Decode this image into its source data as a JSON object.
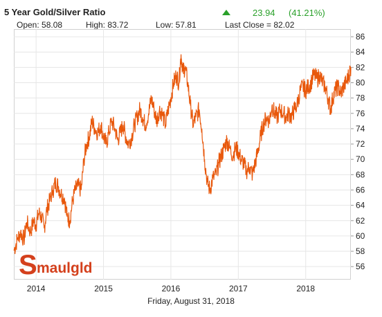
{
  "header": {
    "title": "5 Year Gold/Silver Ratio",
    "change_value": "23.94",
    "change_pct": "(41.21%)",
    "open_label": "Open: 58.08",
    "high_label": "High: 83.72",
    "low_label": "Low: 57.81",
    "last_close_label": "Last Close = 82.02"
  },
  "footer": {
    "date": "Friday, August 31, 2018"
  },
  "logo": {
    "text": "maulgld",
    "initial": "S"
  },
  "colors": {
    "line": "#e8580c",
    "positive": "#2aa02a",
    "grid": "#e6e6e6",
    "logo": "#d4401c"
  },
  "chart_data": {
    "type": "line",
    "title": "5 Year Gold/Silver Ratio",
    "xlabel": "",
    "ylabel": "",
    "x_ticks": [
      "2014",
      "2015",
      "2016",
      "2017",
      "2018"
    ],
    "y_ticks": [
      56,
      58,
      60,
      62,
      64,
      66,
      68,
      70,
      72,
      74,
      76,
      78,
      80,
      82,
      84,
      86
    ],
    "xlim": [
      2013.67,
      2018.67
    ],
    "ylim": [
      54.3,
      87
    ],
    "grid": true,
    "legend": "none",
    "series": [
      {
        "name": "",
        "points": [
          [
            2013.67,
            58.1
          ],
          [
            2013.72,
            59.5
          ],
          [
            2013.77,
            60.5
          ],
          [
            2013.82,
            59.5
          ],
          [
            2013.86,
            61.8
          ],
          [
            2013.92,
            60.5
          ],
          [
            2013.96,
            62.0
          ],
          [
            2014.0,
            61.5
          ],
          [
            2014.04,
            63.0
          ],
          [
            2014.08,
            62.5
          ],
          [
            2014.12,
            61.0
          ],
          [
            2014.16,
            63.5
          ],
          [
            2014.2,
            64.5
          ],
          [
            2014.25,
            66.0
          ],
          [
            2014.29,
            67.0
          ],
          [
            2014.33,
            66.5
          ],
          [
            2014.37,
            65.5
          ],
          [
            2014.42,
            65.0
          ],
          [
            2014.46,
            62.5
          ],
          [
            2014.5,
            62.0
          ],
          [
            2014.54,
            64.5
          ],
          [
            2014.58,
            66.0
          ],
          [
            2014.62,
            66.5
          ],
          [
            2014.67,
            66.0
          ],
          [
            2014.71,
            70.0
          ],
          [
            2014.75,
            72.0
          ],
          [
            2014.79,
            73.0
          ],
          [
            2014.83,
            75.0
          ],
          [
            2014.87,
            74.0
          ],
          [
            2014.92,
            73.5
          ],
          [
            2014.96,
            74.5
          ],
          [
            2015.0,
            73.0
          ],
          [
            2015.04,
            72.0
          ],
          [
            2015.08,
            73.5
          ],
          [
            2015.12,
            75.0
          ],
          [
            2015.17,
            74.0
          ],
          [
            2015.21,
            72.5
          ],
          [
            2015.25,
            73.5
          ],
          [
            2015.29,
            74.5
          ],
          [
            2015.33,
            73.0
          ],
          [
            2015.37,
            72.0
          ],
          [
            2015.42,
            73.0
          ],
          [
            2015.46,
            74.5
          ],
          [
            2015.5,
            75.5
          ],
          [
            2015.54,
            76.5
          ],
          [
            2015.58,
            75.5
          ],
          [
            2015.62,
            74.5
          ],
          [
            2015.67,
            76.0
          ],
          [
            2015.71,
            78.0
          ],
          [
            2015.75,
            76.5
          ],
          [
            2015.79,
            75.0
          ],
          [
            2015.83,
            76.5
          ],
          [
            2015.87,
            76.0
          ],
          [
            2015.92,
            74.5
          ],
          [
            2015.96,
            76.5
          ],
          [
            2016.0,
            78.0
          ],
          [
            2016.04,
            80.0
          ],
          [
            2016.08,
            81.0
          ],
          [
            2016.12,
            80.0
          ],
          [
            2016.15,
            83.7
          ],
          [
            2016.18,
            81.5
          ],
          [
            2016.21,
            82.0
          ],
          [
            2016.25,
            80.0
          ],
          [
            2016.29,
            77.0
          ],
          [
            2016.33,
            74.5
          ],
          [
            2016.37,
            75.5
          ],
          [
            2016.42,
            76.5
          ],
          [
            2016.46,
            74.0
          ],
          [
            2016.5,
            70.0
          ],
          [
            2016.54,
            67.0
          ],
          [
            2016.58,
            66.0
          ],
          [
            2016.62,
            67.5
          ],
          [
            2016.67,
            68.0
          ],
          [
            2016.71,
            69.5
          ],
          [
            2016.75,
            70.5
          ],
          [
            2016.79,
            71.5
          ],
          [
            2016.83,
            72.5
          ],
          [
            2016.87,
            71.5
          ],
          [
            2016.92,
            70.5
          ],
          [
            2016.96,
            71.5
          ],
          [
            2017.0,
            71.0
          ],
          [
            2017.04,
            70.0
          ],
          [
            2017.08,
            69.5
          ],
          [
            2017.12,
            68.5
          ],
          [
            2017.17,
            69.0
          ],
          [
            2017.21,
            68.0
          ],
          [
            2017.25,
            69.5
          ],
          [
            2017.29,
            71.0
          ],
          [
            2017.33,
            73.0
          ],
          [
            2017.37,
            74.5
          ],
          [
            2017.42,
            75.5
          ],
          [
            2017.46,
            75.0
          ],
          [
            2017.5,
            77.0
          ],
          [
            2017.54,
            76.0
          ],
          [
            2017.58,
            75.5
          ],
          [
            2017.62,
            76.5
          ],
          [
            2017.67,
            76.0
          ],
          [
            2017.71,
            75.5
          ],
          [
            2017.75,
            76.0
          ],
          [
            2017.79,
            75.5
          ],
          [
            2017.83,
            76.5
          ],
          [
            2017.87,
            77.0
          ],
          [
            2017.92,
            79.0
          ],
          [
            2017.96,
            79.5
          ],
          [
            2018.0,
            79.0
          ],
          [
            2018.04,
            79.5
          ],
          [
            2018.08,
            80.0
          ],
          [
            2018.12,
            81.0
          ],
          [
            2018.17,
            80.5
          ],
          [
            2018.21,
            81.0
          ],
          [
            2018.25,
            80.0
          ],
          [
            2018.29,
            79.5
          ],
          [
            2018.33,
            78.0
          ],
          [
            2018.37,
            76.5
          ],
          [
            2018.4,
            78.0
          ],
          [
            2018.44,
            79.0
          ],
          [
            2018.48,
            79.5
          ],
          [
            2018.52,
            78.5
          ],
          [
            2018.56,
            79.5
          ],
          [
            2018.6,
            80.0
          ],
          [
            2018.64,
            81.0
          ],
          [
            2018.67,
            82.0
          ]
        ]
      }
    ]
  }
}
